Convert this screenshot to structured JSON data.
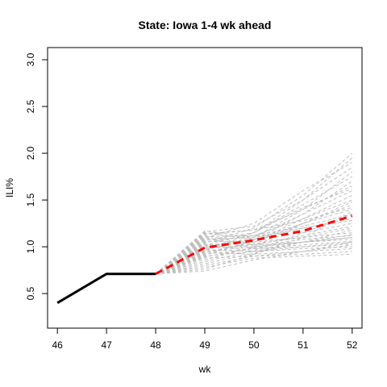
{
  "chart_data": {
    "type": "line",
    "title": "State: Iowa 1-4 wk ahead",
    "xlabel": "wk",
    "ylabel": "ILI%",
    "xlim": [
      45.8,
      52.2
    ],
    "ylim": [
      0.13,
      3.13
    ],
    "x_ticks": [
      "46",
      "47",
      "48",
      "49",
      "50",
      "51",
      "52"
    ],
    "y_ticks": [
      "0.5",
      "1.0",
      "1.5",
      "2.0",
      "2.5",
      "3.0"
    ],
    "grid": false,
    "legend": "none",
    "colors": {
      "observed": "#000000",
      "forecast_mean": "#ff0000",
      "ensemble": "#bebebe"
    },
    "series": [
      {
        "role": "observed",
        "x": [
          46,
          47,
          48
        ],
        "y": [
          0.4,
          0.71,
          0.71
        ]
      },
      {
        "role": "forecast_mean",
        "x": [
          48,
          49,
          50,
          51,
          52
        ],
        "y": [
          0.71,
          0.99,
          1.07,
          1.17,
          1.33
        ]
      }
    ],
    "ensemble": [
      [
        0.71,
        1.17,
        1.1,
        1.2,
        1.3
      ],
      [
        0.71,
        1.15,
        1.08,
        1.15,
        1.25
      ],
      [
        0.71,
        1.14,
        1.18,
        1.28,
        1.42
      ],
      [
        0.71,
        1.12,
        1.02,
        1.05,
        1.08
      ],
      [
        0.71,
        1.1,
        0.98,
        1.0,
        1.03
      ],
      [
        0.71,
        1.08,
        1.1,
        1.35,
        1.6
      ],
      [
        0.71,
        1.07,
        1.15,
        1.45,
        1.75
      ],
      [
        0.71,
        1.06,
        1.05,
        1.1,
        1.15
      ],
      [
        0.71,
        1.05,
        1.12,
        1.3,
        1.5
      ],
      [
        0.71,
        1.04,
        1.2,
        1.55,
        2.0
      ],
      [
        0.71,
        1.03,
        0.95,
        0.98,
        1.0
      ],
      [
        0.71,
        1.02,
        1.05,
        1.25,
        1.4
      ],
      [
        0.71,
        1.01,
        1.08,
        1.2,
        1.28
      ],
      [
        0.71,
        1.0,
        1.0,
        1.05,
        1.1
      ],
      [
        0.71,
        0.99,
        1.1,
        1.4,
        1.65
      ],
      [
        0.71,
        0.98,
        1.02,
        1.12,
        1.22
      ],
      [
        0.71,
        0.97,
        0.95,
        1.0,
        1.05
      ],
      [
        0.71,
        0.96,
        1.15,
        1.5,
        1.85
      ],
      [
        0.71,
        0.95,
        1.0,
        1.08,
        1.12
      ],
      [
        0.71,
        0.94,
        0.92,
        0.95,
        0.98
      ],
      [
        0.71,
        0.93,
        1.05,
        1.3,
        1.55
      ],
      [
        0.71,
        0.92,
        0.98,
        1.02,
        1.06
      ],
      [
        0.71,
        0.91,
        1.07,
        1.35,
        1.7
      ],
      [
        0.71,
        0.9,
        0.95,
        1.05,
        1.18
      ],
      [
        0.71,
        0.88,
        0.9,
        0.92,
        0.95
      ],
      [
        0.71,
        0.86,
        1.0,
        1.25,
        1.45
      ],
      [
        0.71,
        0.84,
        0.96,
        1.15,
        1.35
      ],
      [
        0.71,
        0.82,
        0.93,
        1.05,
        1.13
      ],
      [
        0.71,
        0.8,
        0.9,
        0.95,
        1.02
      ],
      [
        0.71,
        0.78,
        0.88,
        0.9,
        0.92
      ],
      [
        0.71,
        0.76,
        0.92,
        1.1,
        1.38
      ],
      [
        0.71,
        0.74,
        0.86,
        0.95,
        1.05
      ],
      [
        0.71,
        1.16,
        1.22,
        1.5,
        1.95
      ],
      [
        0.71,
        1.13,
        1.18,
        1.4,
        1.8
      ],
      [
        0.71,
        1.09,
        1.25,
        1.6,
        1.9
      ],
      [
        0.71,
        1.11,
        1.12,
        1.22,
        1.35
      ],
      [
        0.71,
        1.02,
        1.15,
        1.42,
        1.62
      ],
      [
        0.71,
        0.97,
        1.08,
        1.25,
        1.48
      ],
      [
        0.71,
        0.95,
        1.03,
        1.1,
        1.2
      ],
      [
        0.71,
        0.89,
        0.99,
        1.05,
        1.1
      ]
    ]
  }
}
